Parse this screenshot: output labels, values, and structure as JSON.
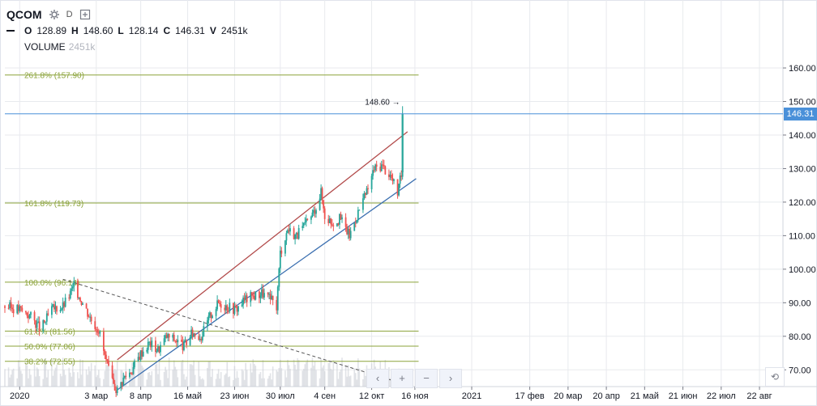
{
  "header": {
    "symbol": "QCOM",
    "interval": "D",
    "ohlc": {
      "o_label": "O",
      "o": "128.89",
      "h_label": "H",
      "h": "148.60",
      "l_label": "L",
      "l": "128.14",
      "c_label": "C",
      "c": "146.31",
      "v_label": "V",
      "v": "2451k"
    },
    "volume_label": "VOLUME",
    "volume_value": "2451k"
  },
  "colors": {
    "up": "#26a69a",
    "down": "#ef5350",
    "fib": "#8ba33a",
    "upper_channel": "#b24a4a",
    "lower_channel": "#3b6fb0",
    "price_line": "#4a90d9",
    "grid": "#e8eaee"
  },
  "nav_buttons": [
    "‹",
    "+",
    "−",
    "›"
  ],
  "reset_icon": "⟲",
  "chart_data": {
    "type": "candlestick",
    "title": "QCOM",
    "x_range": [
      "2019-12-20",
      "2021-09-10"
    ],
    "y_range": [
      65,
      167
    ],
    "y_ticks": [
      70,
      80,
      90,
      100,
      110,
      120,
      130,
      140,
      150,
      160
    ],
    "y_tick_labels": [
      "70.00",
      "80.00",
      "90.00",
      "100.00",
      "110.00",
      "120.00",
      "130.00",
      "140.00",
      "150.00",
      "160.00"
    ],
    "x_ticks": [
      {
        "date": "2020-01-01",
        "label": "2020"
      },
      {
        "date": "2020-03-03",
        "label": "3 мар"
      },
      {
        "date": "2020-04-08",
        "label": "8 апр"
      },
      {
        "date": "2020-05-16",
        "label": "16 май"
      },
      {
        "date": "2020-06-23",
        "label": "23 июн"
      },
      {
        "date": "2020-07-30",
        "label": "30 июл"
      },
      {
        "date": "2020-09-04",
        "label": "4 сен"
      },
      {
        "date": "2020-10-12",
        "label": "12 окт"
      },
      {
        "date": "2020-11-16",
        "label": "16 ноя"
      },
      {
        "date": "2021-01-01",
        "label": "2021"
      },
      {
        "date": "2021-02-17",
        "label": "17 фев"
      },
      {
        "date": "2021-03-20",
        "label": "20 мар"
      },
      {
        "date": "2021-04-20",
        "label": "20 апр"
      },
      {
        "date": "2021-05-21",
        "label": "21 май"
      },
      {
        "date": "2021-06-21",
        "label": "21 июн"
      },
      {
        "date": "2021-07-22",
        "label": "22 июл"
      },
      {
        "date": "2021-08-22",
        "label": "22 авг"
      }
    ],
    "last_price": 146.31,
    "last_price_label": "146.31",
    "high_annotation": {
      "date": "2020-11-06",
      "value": 148.6,
      "label": "148.60 →"
    },
    "fib_levels": [
      {
        "label": "261.8% (157.90)",
        "value": 157.9
      },
      {
        "label": "161.8% (119.73)",
        "value": 119.73
      },
      {
        "label": "100.0% (96.14)",
        "value": 96.14
      },
      {
        "label": "61.8% (81.56)",
        "value": 81.56
      },
      {
        "label": "50.0% (77.06)",
        "value": 77.06
      },
      {
        "label": "38.2% (72.55)",
        "value": 72.55
      }
    ],
    "fib_range": [
      "2019-12-20",
      "2020-11-19"
    ],
    "channel_upper": [
      [
        "2020-03-20",
        73
      ],
      [
        "2020-11-10",
        141
      ]
    ],
    "channel_lower": [
      [
        "2020-03-20",
        64
      ],
      [
        "2020-11-17",
        127
      ]
    ],
    "trend_dashed": [
      [
        "2020-02-05",
        97
      ],
      [
        "2020-11-14",
        65
      ]
    ],
    "price_series": [
      [
        "2019-12-20",
        89
      ],
      [
        "2020-01-01",
        88
      ],
      [
        "2020-01-10",
        86
      ],
      [
        "2020-01-18",
        82
      ],
      [
        "2020-01-27",
        88
      ],
      [
        "2020-02-05",
        89
      ],
      [
        "2020-02-10",
        92
      ],
      [
        "2020-02-14",
        95
      ],
      [
        "2020-02-21",
        90
      ],
      [
        "2020-02-28",
        85
      ],
      [
        "2020-03-05",
        82
      ],
      [
        "2020-03-10",
        74
      ],
      [
        "2020-03-16",
        66
      ],
      [
        "2020-03-20",
        64
      ],
      [
        "2020-03-26",
        68
      ],
      [
        "2020-04-01",
        70
      ],
      [
        "2020-04-08",
        75
      ],
      [
        "2020-04-15",
        78
      ],
      [
        "2020-04-22",
        76
      ],
      [
        "2020-04-29",
        80
      ],
      [
        "2020-05-06",
        79
      ],
      [
        "2020-05-13",
        77
      ],
      [
        "2020-05-20",
        81
      ],
      [
        "2020-05-27",
        80
      ],
      [
        "2020-06-03",
        86
      ],
      [
        "2020-06-10",
        90
      ],
      [
        "2020-06-17",
        89
      ],
      [
        "2020-06-24",
        88
      ],
      [
        "2020-07-01",
        91
      ],
      [
        "2020-07-08",
        92
      ],
      [
        "2020-07-15",
        93
      ],
      [
        "2020-07-22",
        91
      ],
      [
        "2020-07-27",
        89
      ],
      [
        "2020-07-30",
        105
      ],
      [
        "2020-08-05",
        112
      ],
      [
        "2020-08-12",
        110
      ],
      [
        "2020-08-19",
        113
      ],
      [
        "2020-08-26",
        117
      ],
      [
        "2020-09-01",
        123
      ],
      [
        "2020-09-04",
        116
      ],
      [
        "2020-09-10",
        114
      ],
      [
        "2020-09-17",
        115
      ],
      [
        "2020-09-24",
        110
      ],
      [
        "2020-10-01",
        117
      ],
      [
        "2020-10-08",
        123
      ],
      [
        "2020-10-14",
        130
      ],
      [
        "2020-10-20",
        131
      ],
      [
        "2020-10-27",
        128
      ],
      [
        "2020-11-02",
        123
      ],
      [
        "2020-11-05",
        128
      ],
      [
        "2020-11-06",
        146.31
      ]
    ]
  }
}
